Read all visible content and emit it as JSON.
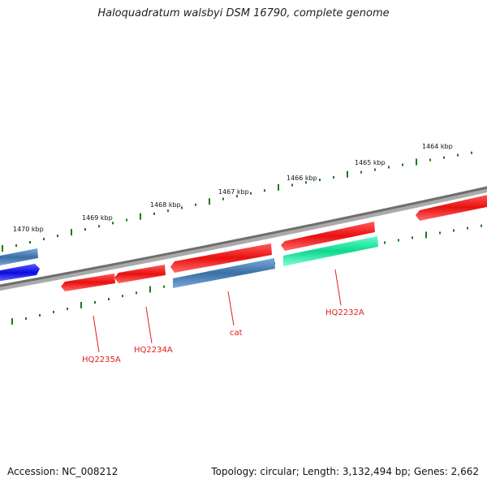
{
  "title": "Haloquadratum walsbyi DSM 16790, complete genome",
  "accession": "Accession: NC_008212",
  "topology": "Topology: circular; Length: 3,132,494 bp; Genes: 2,662",
  "colors": {
    "backbone": "#7a7a7a",
    "tick": "#1a7a1a",
    "red_gene": "#e81818",
    "blue_gene": "#4a82b8",
    "darkblue_gene": "#1010e0",
    "green_gene": "#20e0a0",
    "label": "#e0201c"
  },
  "scale_labels": [
    "1470 kbp",
    "1469 kbp",
    "1468 kbp",
    "1467 kbp",
    "1466 kbp",
    "1465 kbp",
    "1464 kbp"
  ],
  "gene_labels": [
    "HQ2235A",
    "HQ2234A",
    "cat",
    "HQ2232A"
  ],
  "genes": [
    {
      "color": "blue_gene",
      "strand": "upper"
    },
    {
      "color": "darkblue_gene",
      "strand": "upper"
    },
    {
      "color": "red_gene",
      "strand": "lower"
    },
    {
      "color": "red_gene",
      "strand": "lower"
    },
    {
      "color": "red_gene",
      "strand": "lower"
    },
    {
      "color": "blue_gene",
      "strand": "lower"
    },
    {
      "color": "red_gene",
      "strand": "lower"
    },
    {
      "color": "green_gene",
      "strand": "lower"
    },
    {
      "color": "red_gene",
      "strand": "lower"
    }
  ]
}
